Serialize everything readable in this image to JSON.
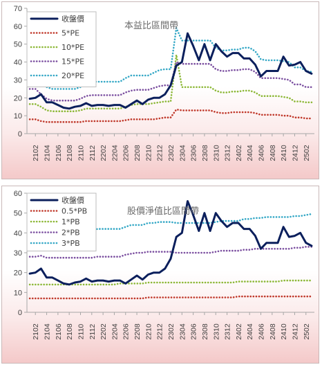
{
  "chart_data": [
    {
      "type": "line",
      "title": "本益比區間帶",
      "ylim": [
        0,
        70
      ],
      "yticks": [
        0,
        10,
        20,
        30,
        40,
        50,
        60,
        70
      ],
      "grid": false,
      "legend_placement": "top-left",
      "x": [
        "2101",
        "2102",
        "2103",
        "2104",
        "2105",
        "2106",
        "2107",
        "2108",
        "2109",
        "2110",
        "2111",
        "2112",
        "2201",
        "2202",
        "2203",
        "2204",
        "2205",
        "2206",
        "2207",
        "2208",
        "2209",
        "2210",
        "2211",
        "2212",
        "2301",
        "2302",
        "2303",
        "2304",
        "2305",
        "2306",
        "2307",
        "2308",
        "2309",
        "2310",
        "2311",
        "2312",
        "2401",
        "2402",
        "2403",
        "2404",
        "2405",
        "2406",
        "2407",
        "2408",
        "2409",
        "2410",
        "2411",
        "2412",
        "2501",
        "2502",
        "2503"
      ],
      "xticks": [
        "2102",
        "2104",
        "2106",
        "2108",
        "2110",
        "2112",
        "2202",
        "2204",
        "2206",
        "2208",
        "2210",
        "2212",
        "2302",
        "2304",
        "2306",
        "2308",
        "2310",
        "2312",
        "2402",
        "2404",
        "2406",
        "2408",
        "2410",
        "2412",
        "2502"
      ],
      "series": [
        {
          "name": "收盤價",
          "color": "#0b1f5c",
          "style": "solid",
          "values": [
            19.5,
            20,
            22,
            17.5,
            17.5,
            16,
            14.5,
            14,
            15,
            15.5,
            17,
            15.5,
            16,
            16,
            15.5,
            16,
            16,
            14.5,
            16.5,
            18.5,
            16.5,
            19,
            20,
            20,
            22,
            27,
            38,
            40,
            56,
            49,
            41,
            50,
            41,
            50,
            46,
            43,
            45,
            45,
            42,
            42,
            38.5,
            32,
            35,
            35,
            35,
            43,
            38,
            38.5,
            40,
            35,
            33.5
          ]
        },
        {
          "name": "5*PE",
          "color": "#c0392b",
          "style": "dotted",
          "values": [
            8,
            8,
            7,
            6.5,
            6.5,
            6.5,
            6.5,
            6.5,
            6.5,
            6.5,
            7,
            7,
            7,
            7,
            7,
            7,
            7,
            7.5,
            8,
            8,
            8,
            8,
            8,
            8.5,
            9,
            9,
            13.5,
            13,
            13,
            13,
            13,
            13,
            13,
            12,
            11.5,
            11.5,
            12,
            12,
            12,
            12,
            11.5,
            10.5,
            10.5,
            10.5,
            10.5,
            10,
            10,
            9,
            9,
            8.5,
            8.5
          ]
        },
        {
          "name": "10*PE",
          "color": "#8db838",
          "style": "dotted",
          "values": [
            16.5,
            16.5,
            15,
            13,
            12.5,
            12.5,
            12.5,
            12.5,
            12.5,
            13,
            14,
            14,
            14,
            14,
            14,
            14,
            14,
            15,
            16,
            16.5,
            16.5,
            16.5,
            17,
            17.5,
            18,
            18,
            44,
            26,
            26,
            26,
            26,
            26,
            26,
            24,
            23,
            23,
            23.5,
            23.5,
            24,
            24,
            23,
            21,
            21,
            21,
            21,
            20.5,
            20,
            18,
            18,
            17.5,
            17.5
          ]
        },
        {
          "name": "15*PE",
          "color": "#7b4fa0",
          "style": "dotted",
          "values": [
            25,
            25,
            22,
            19.5,
            18.5,
            18.5,
            18.5,
            18.5,
            18.5,
            19.5,
            21,
            21.5,
            21.5,
            21.5,
            21.5,
            21.5,
            21.5,
            23,
            24,
            24.5,
            24.5,
            24.5,
            25.5,
            26.5,
            27,
            27,
            40,
            39,
            39,
            39,
            39,
            39,
            39,
            36,
            35,
            35,
            35.5,
            35.5,
            36,
            36,
            34.5,
            31,
            31,
            31,
            31,
            30.5,
            30,
            27.5,
            27.5,
            26,
            26
          ]
        },
        {
          "name": "20*PE",
          "color": "#35a8c6",
          "style": "dotted",
          "values": [
            33,
            33,
            29,
            26,
            25,
            25,
            25,
            25,
            25,
            26,
            28,
            29,
            29,
            29,
            29,
            29,
            29,
            31,
            32.5,
            32.5,
            32.5,
            32.5,
            34,
            35.5,
            36,
            36,
            59,
            52,
            52,
            52,
            52,
            52,
            52,
            48,
            46.5,
            46.5,
            47,
            47,
            48,
            48,
            46,
            41.5,
            41,
            41,
            41,
            40.5,
            40,
            37,
            37,
            35,
            34.5
          ]
        }
      ]
    },
    {
      "type": "line",
      "title": "股價淨值比區間帶",
      "ylim": [
        0,
        60
      ],
      "yticks": [
        0,
        10,
        20,
        30,
        40,
        50,
        60
      ],
      "grid": false,
      "legend_placement": "top-left",
      "x": [
        "2101",
        "2102",
        "2103",
        "2104",
        "2105",
        "2106",
        "2107",
        "2108",
        "2109",
        "2110",
        "2111",
        "2112",
        "2201",
        "2202",
        "2203",
        "2204",
        "2205",
        "2206",
        "2207",
        "2208",
        "2209",
        "2210",
        "2211",
        "2212",
        "2301",
        "2302",
        "2303",
        "2304",
        "2305",
        "2306",
        "2307",
        "2308",
        "2309",
        "2310",
        "2311",
        "2312",
        "2401",
        "2402",
        "2403",
        "2404",
        "2405",
        "2406",
        "2407",
        "2408",
        "2409",
        "2410",
        "2411",
        "2412",
        "2501",
        "2502",
        "2503"
      ],
      "xticks": [
        "2102",
        "2104",
        "2106",
        "2108",
        "2110",
        "2112",
        "2202",
        "2204",
        "2206",
        "2208",
        "2210",
        "2212",
        "2302",
        "2304",
        "2306",
        "2308",
        "2310",
        "2312",
        "2402",
        "2404",
        "2406",
        "2408",
        "2410",
        "2412",
        "2502"
      ],
      "series": [
        {
          "name": "收盤價",
          "color": "#0b1f5c",
          "style": "solid",
          "values": [
            19.5,
            20,
            22,
            17.5,
            17.5,
            16,
            14.5,
            14,
            15,
            15.5,
            17,
            15.5,
            16,
            16,
            15.5,
            16,
            16,
            14.5,
            16.5,
            18.5,
            16.5,
            19,
            20,
            20,
            22,
            27,
            38,
            40,
            56,
            49,
            41,
            50,
            41,
            50,
            46,
            43,
            45,
            45,
            42,
            42,
            38.5,
            32,
            35,
            35,
            35,
            43,
            38,
            38.5,
            40,
            35,
            33.5
          ]
        },
        {
          "name": "0.5*PB",
          "color": "#c0392b",
          "style": "dotted",
          "values": [
            7,
            7,
            7,
            7,
            7,
            7,
            7,
            7,
            7,
            7,
            7,
            7,
            7,
            7,
            7,
            7,
            7,
            7,
            7,
            7,
            7,
            7.5,
            7.5,
            7.5,
            7.5,
            7.5,
            7.5,
            7.5,
            7.5,
            7.5,
            7.5,
            7.5,
            7.5,
            7.5,
            7.5,
            7.5,
            7.5,
            8,
            8,
            8,
            8,
            8,
            8,
            8,
            8,
            8,
            8,
            8,
            8,
            8,
            8
          ]
        },
        {
          "name": "1*PB",
          "color": "#8db838",
          "style": "dotted",
          "values": [
            14,
            14,
            14,
            14,
            14,
            14,
            14,
            14,
            14,
            14,
            14,
            14,
            14,
            14,
            14,
            14,
            14.5,
            14.5,
            14.5,
            14.5,
            14.5,
            15,
            15,
            15,
            15,
            15,
            15,
            15,
            15,
            15,
            15,
            15,
            15,
            15,
            15,
            15,
            15,
            15.5,
            15.5,
            15.5,
            15.5,
            15.5,
            15.5,
            15.5,
            15.5,
            16,
            16,
            16,
            16,
            16,
            16
          ]
        },
        {
          "name": "2*PB",
          "color": "#7b4fa0",
          "style": "dotted",
          "values": [
            28,
            28,
            28.5,
            27.5,
            27.5,
            27.5,
            27.5,
            27.5,
            27.5,
            27.5,
            27.5,
            27.5,
            28,
            28,
            28,
            28,
            28,
            29,
            29.5,
            30,
            30,
            30.5,
            30.5,
            30.5,
            30.5,
            30.5,
            30,
            30,
            30,
            30,
            30,
            30,
            30,
            30.5,
            31,
            31,
            31,
            31,
            31.5,
            31.5,
            32,
            32,
            32,
            32,
            32,
            32,
            32,
            32.5,
            32.5,
            33,
            33
          ]
        },
        {
          "name": "3*PB",
          "color": "#35a8c6",
          "style": "dotted",
          "values": [
            42,
            42,
            42.5,
            41.5,
            41,
            41,
            41,
            41,
            41,
            41,
            41,
            41,
            42,
            42,
            42,
            42,
            42,
            43,
            44,
            44,
            44,
            45,
            45,
            45.5,
            45.5,
            45.5,
            45,
            45,
            45,
            45,
            45,
            45,
            45,
            45.5,
            46,
            46,
            46,
            46,
            47,
            47,
            47.5,
            47.5,
            48,
            48,
            48,
            48,
            48,
            48.5,
            48.5,
            49,
            49.5
          ]
        }
      ]
    }
  ]
}
